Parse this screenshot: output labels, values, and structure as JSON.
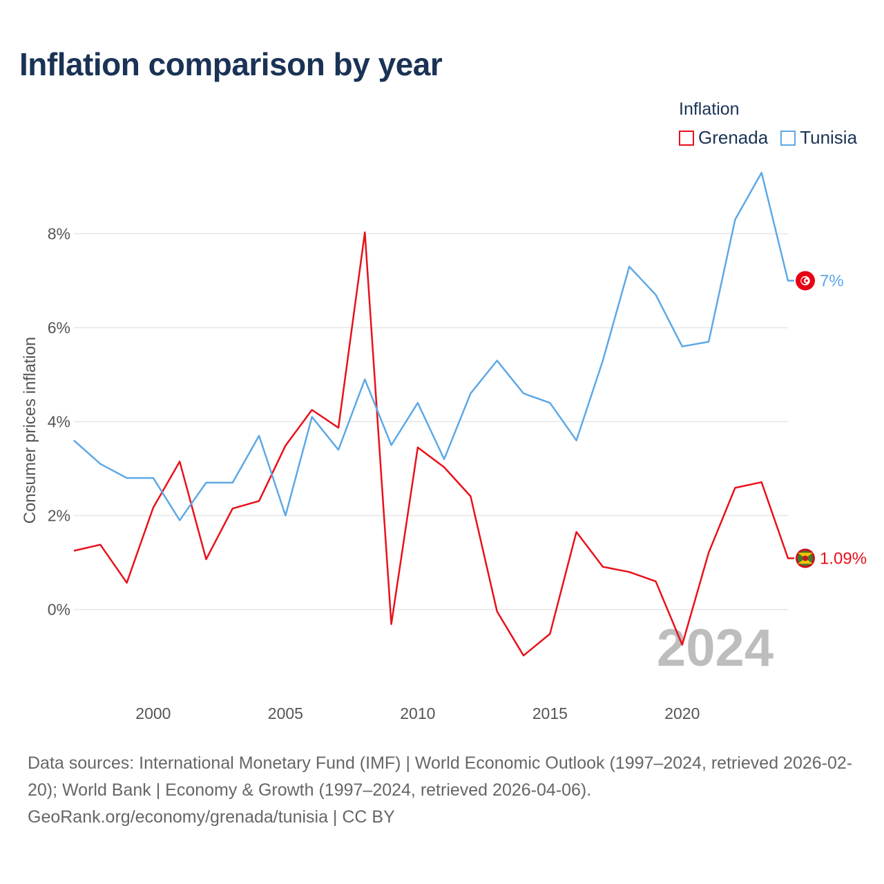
{
  "title": "Inflation comparison by year",
  "legend": {
    "title": "Inflation",
    "items": [
      {
        "name": "Grenada",
        "color": "#e8101a"
      },
      {
        "name": "Tunisia",
        "color": "#5da8e6"
      }
    ]
  },
  "source": {
    "line1": "Data sources: International Monetary Fund (IMF) | World Economic Outlook (1997–2024, retrieved 2026-02-20); World Bank | Economy & Growth (1997–2024, retrieved 2026-04-06).",
    "line2": "GeoRank.org/economy/grenada/tunisia | CC BY"
  },
  "chart_data": {
    "type": "line",
    "title": "Inflation comparison by year",
    "xlabel": "",
    "ylabel": "Consumer prices inflation",
    "xlim": [
      1997,
      2024
    ],
    "ylim": [
      -1.8,
      9.3
    ],
    "x_ticks": [
      2000,
      2005,
      2010,
      2015,
      2020
    ],
    "y_ticks": [
      0,
      2,
      4,
      6,
      8
    ],
    "y_tick_labels": [
      "0%",
      "2%",
      "4%",
      "6%",
      "8%"
    ],
    "grid": true,
    "legend_position": "top-right",
    "current_year_label": "2024",
    "x": [
      1997,
      1998,
      1999,
      2000,
      2001,
      2002,
      2003,
      2004,
      2005,
      2006,
      2007,
      2008,
      2009,
      2010,
      2011,
      2012,
      2013,
      2014,
      2015,
      2016,
      2017,
      2018,
      2019,
      2020,
      2021,
      2022,
      2023,
      2024
    ],
    "series": [
      {
        "name": "Grenada",
        "color": "#e8101a",
        "end_label": "1.09%",
        "flag_icon": "grenada-flag-icon",
        "values": [
          1.25,
          1.38,
          0.57,
          2.17,
          3.15,
          1.07,
          2.15,
          2.31,
          3.49,
          4.25,
          3.87,
          8.03,
          -0.31,
          3.45,
          3.03,
          2.41,
          -0.04,
          -0.98,
          -0.52,
          1.65,
          0.91,
          0.8,
          0.6,
          -0.75,
          1.21,
          2.59,
          2.71,
          1.09
        ]
      },
      {
        "name": "Tunisia",
        "color": "#5da8e6",
        "end_label": "7%",
        "flag_icon": "tunisia-flag-icon",
        "values": [
          3.6,
          3.1,
          2.8,
          2.8,
          1.9,
          2.7,
          2.7,
          3.7,
          2.0,
          4.1,
          3.4,
          4.9,
          3.5,
          4.4,
          3.2,
          4.6,
          5.3,
          4.6,
          4.4,
          3.6,
          5.3,
          7.3,
          6.7,
          5.6,
          5.7,
          8.3,
          9.3,
          7.0
        ]
      }
    ]
  }
}
